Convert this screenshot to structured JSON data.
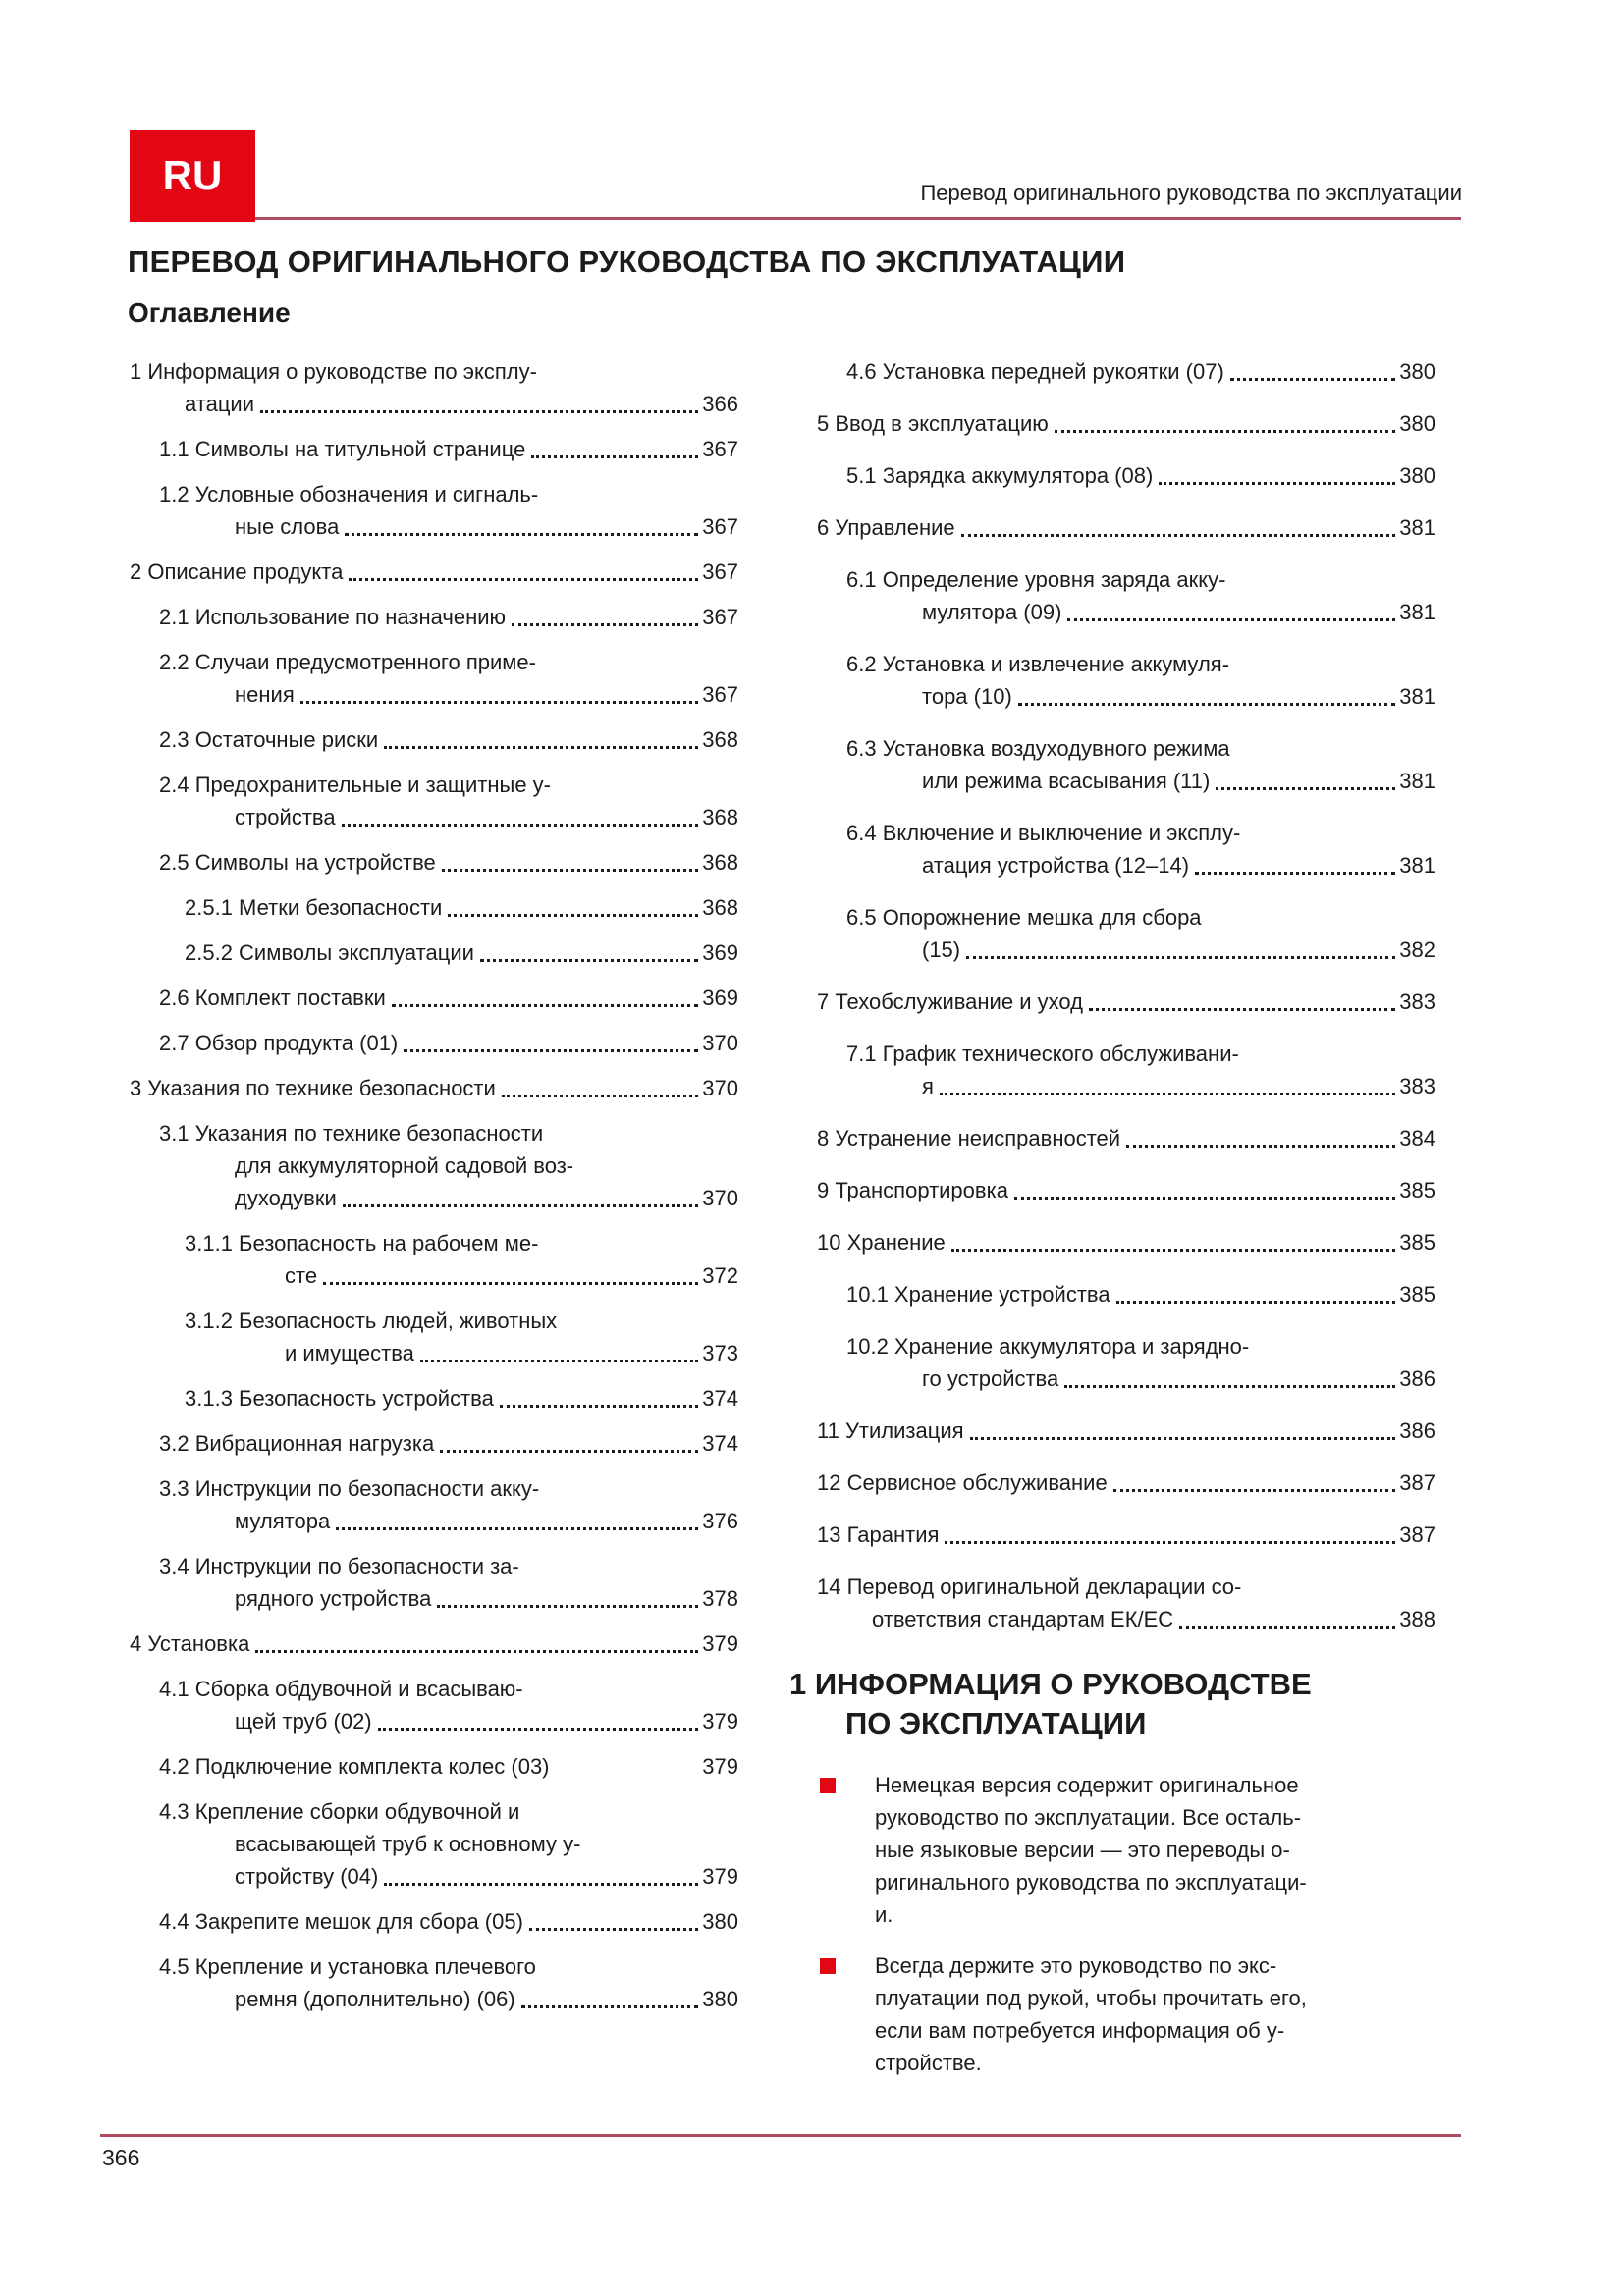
{
  "colors": {
    "accent_red": "#e30613",
    "rule_red": "#b04a5e",
    "text": "#1c1c1c"
  },
  "header": {
    "language_badge": "RU",
    "running_title": "Перевод оригинального руководства по эксплуатации"
  },
  "main": {
    "title": "ПЕРЕВОД ОРИГИНАЛЬНОГО РУКОВОДСТВА ПО ЭКСПЛУАТАЦИИ",
    "toc_heading": "Оглавление"
  },
  "toc": {
    "left": [
      {
        "lv": 1,
        "lines": [
          "1 Информация о руководстве по эксплу-",
          "атации"
        ],
        "page": "366"
      },
      {
        "lv": 2,
        "lines": [
          "1.1 Символы на титульной странице"
        ],
        "page": "367"
      },
      {
        "lv": 2,
        "lines": [
          "1.2 Условные обозначения и сигналь-",
          "ные слова"
        ],
        "page": "367"
      },
      {
        "lv": 1,
        "lines": [
          "2 Описание продукта"
        ],
        "page": "367"
      },
      {
        "lv": 2,
        "lines": [
          "2.1 Использование по назначению"
        ],
        "page": "367"
      },
      {
        "lv": 2,
        "lines": [
          "2.2 Случаи предусмотренного приме-",
          "нения"
        ],
        "page": "367"
      },
      {
        "lv": 2,
        "lines": [
          "2.3 Остаточные риски"
        ],
        "page": "368"
      },
      {
        "lv": 2,
        "lines": [
          "2.4 Предохранительные и защитные у-",
          "стройства"
        ],
        "page": "368"
      },
      {
        "lv": 2,
        "lines": [
          "2.5 Символы на устройстве"
        ],
        "page": "368"
      },
      {
        "lv": 3,
        "lines": [
          "2.5.1 Метки безопасности"
        ],
        "page": "368"
      },
      {
        "lv": 3,
        "lines": [
          "2.5.2 Символы эксплуатации"
        ],
        "page": "369"
      },
      {
        "lv": 2,
        "lines": [
          "2.6 Комплект поставки"
        ],
        "page": "369"
      },
      {
        "lv": 2,
        "lines": [
          "2.7 Обзор продукта (01)"
        ],
        "page": "370"
      },
      {
        "lv": 1,
        "lines": [
          "3 Указания по технике безопасности"
        ],
        "page": "370"
      },
      {
        "lv": 2,
        "lines": [
          "3.1 Указания по технике безопасности",
          "для аккумуляторной садовой воз-",
          "духодувки"
        ],
        "page": "370"
      },
      {
        "lv": 3,
        "lines": [
          "3.1.1 Безопасность на рабочем ме-",
          "сте"
        ],
        "page": "372"
      },
      {
        "lv": 3,
        "lines": [
          "3.1.2 Безопасность людей, животных",
          "и имущества"
        ],
        "page": "373"
      },
      {
        "lv": 3,
        "lines": [
          "3.1.3 Безопасность устройства"
        ],
        "page": "374"
      },
      {
        "lv": 2,
        "lines": [
          "3.2 Вибрационная нагрузка"
        ],
        "page": "374"
      },
      {
        "lv": 2,
        "lines": [
          "3.3 Инструкции по безопасности акку-",
          "мулятора"
        ],
        "page": "376"
      },
      {
        "lv": 2,
        "lines": [
          "3.4 Инструкции по безопасности за-",
          "рядного устройства"
        ],
        "page": "378"
      },
      {
        "lv": 1,
        "lines": [
          "4 Установка"
        ],
        "page": "379"
      },
      {
        "lv": 2,
        "lines": [
          "4.1 Сборка обдувочной и всасываю-",
          "щей труб (02)"
        ],
        "page": "379"
      },
      {
        "lv": 2,
        "lines": [
          "4.2 Подключение комплекта колес (03)"
        ],
        "page": "379",
        "leader": false
      },
      {
        "lv": 2,
        "lines": [
          "4.3 Крепление сборки обдувочной и",
          "всасывающей труб к основному у-",
          "стройству (04)"
        ],
        "page": "379"
      },
      {
        "lv": 2,
        "lines": [
          "4.4 Закрепите мешок для сбора (05)"
        ],
        "page": "380"
      },
      {
        "lv": 2,
        "lines": [
          "4.5 Крепление и установка плечевого",
          "ремня (дополнительно) (06)"
        ],
        "page": "380"
      }
    ],
    "right": [
      {
        "lv": 2,
        "lines": [
          "4.6 Установка передней рукоятки (07)"
        ],
        "page": "380"
      },
      {
        "lv": 1,
        "lines": [
          "5 Ввод в эксплуатацию"
        ],
        "page": "380"
      },
      {
        "lv": 2,
        "lines": [
          "5.1 Зарядка аккумулятора (08)"
        ],
        "page": "380"
      },
      {
        "lv": 1,
        "lines": [
          "6 Управление"
        ],
        "page": "381"
      },
      {
        "lv": 2,
        "lines": [
          "6.1 Определение уровня заряда акку-",
          "мулятора (09)"
        ],
        "page": "381"
      },
      {
        "lv": 2,
        "lines": [
          "6.2 Установка и извлечение аккумуля-",
          "тора (10)"
        ],
        "page": "381"
      },
      {
        "lv": 2,
        "lines": [
          "6.3 Установка воздуходувного режима",
          "или режима всасывания (11)"
        ],
        "page": "381"
      },
      {
        "lv": 2,
        "lines": [
          "6.4 Включение и выключение и эксплу-",
          "атация устройства (12–14)"
        ],
        "page": "381"
      },
      {
        "lv": 2,
        "lines": [
          "6.5 Опорожнение мешка для сбора",
          "(15)"
        ],
        "page": "382"
      },
      {
        "lv": 1,
        "lines": [
          "7 Техобслуживание и уход"
        ],
        "page": "383"
      },
      {
        "lv": 2,
        "lines": [
          "7.1 График технического обслуживани-",
          "я"
        ],
        "page": "383"
      },
      {
        "lv": 1,
        "lines": [
          "8 Устранение неисправностей"
        ],
        "page": "384"
      },
      {
        "lv": 1,
        "lines": [
          "9 Транспортировка"
        ],
        "page": "385"
      },
      {
        "lv": 1,
        "lines": [
          "10 Хранение"
        ],
        "page": "385"
      },
      {
        "lv": 2,
        "lines": [
          "10.1 Хранение устройства"
        ],
        "page": "385"
      },
      {
        "lv": 2,
        "lines": [
          "10.2 Хранение аккумулятора и зарядно-",
          "го устройства"
        ],
        "page": "386"
      },
      {
        "lv": 1,
        "lines": [
          "11 Утилизация"
        ],
        "page": "386"
      },
      {
        "lv": 1,
        "lines": [
          "12 Сервисное обслуживание"
        ],
        "page": "387"
      },
      {
        "lv": 1,
        "lines": [
          "13 Гарантия"
        ],
        "page": "387"
      },
      {
        "lv": 1,
        "lines": [
          "14 Перевод оригинальной декларации со-",
          "ответствия стандартам ЕК/ЕС"
        ],
        "page": "388"
      }
    ]
  },
  "info_section": {
    "heading_line1": "1 ИНФОРМАЦИЯ О РУКОВОДСТВЕ",
    "heading_line2": "ПО ЭКСПЛУАТАЦИИ",
    "bullets": [
      [
        "Немецкая версия содержит оригинальное",
        "руководство по эксплуатации. Все осталь-",
        "ные языковые версии — это переводы о-",
        "ригинального руководства по эксплуатаци-",
        "и."
      ],
      [
        "Всегда держите это руководство по экс-",
        "плуатации под рукой, чтобы прочитать его,",
        "если вам потребуется информация об у-",
        "стройстве."
      ]
    ]
  },
  "footer": {
    "page_number": "366"
  }
}
